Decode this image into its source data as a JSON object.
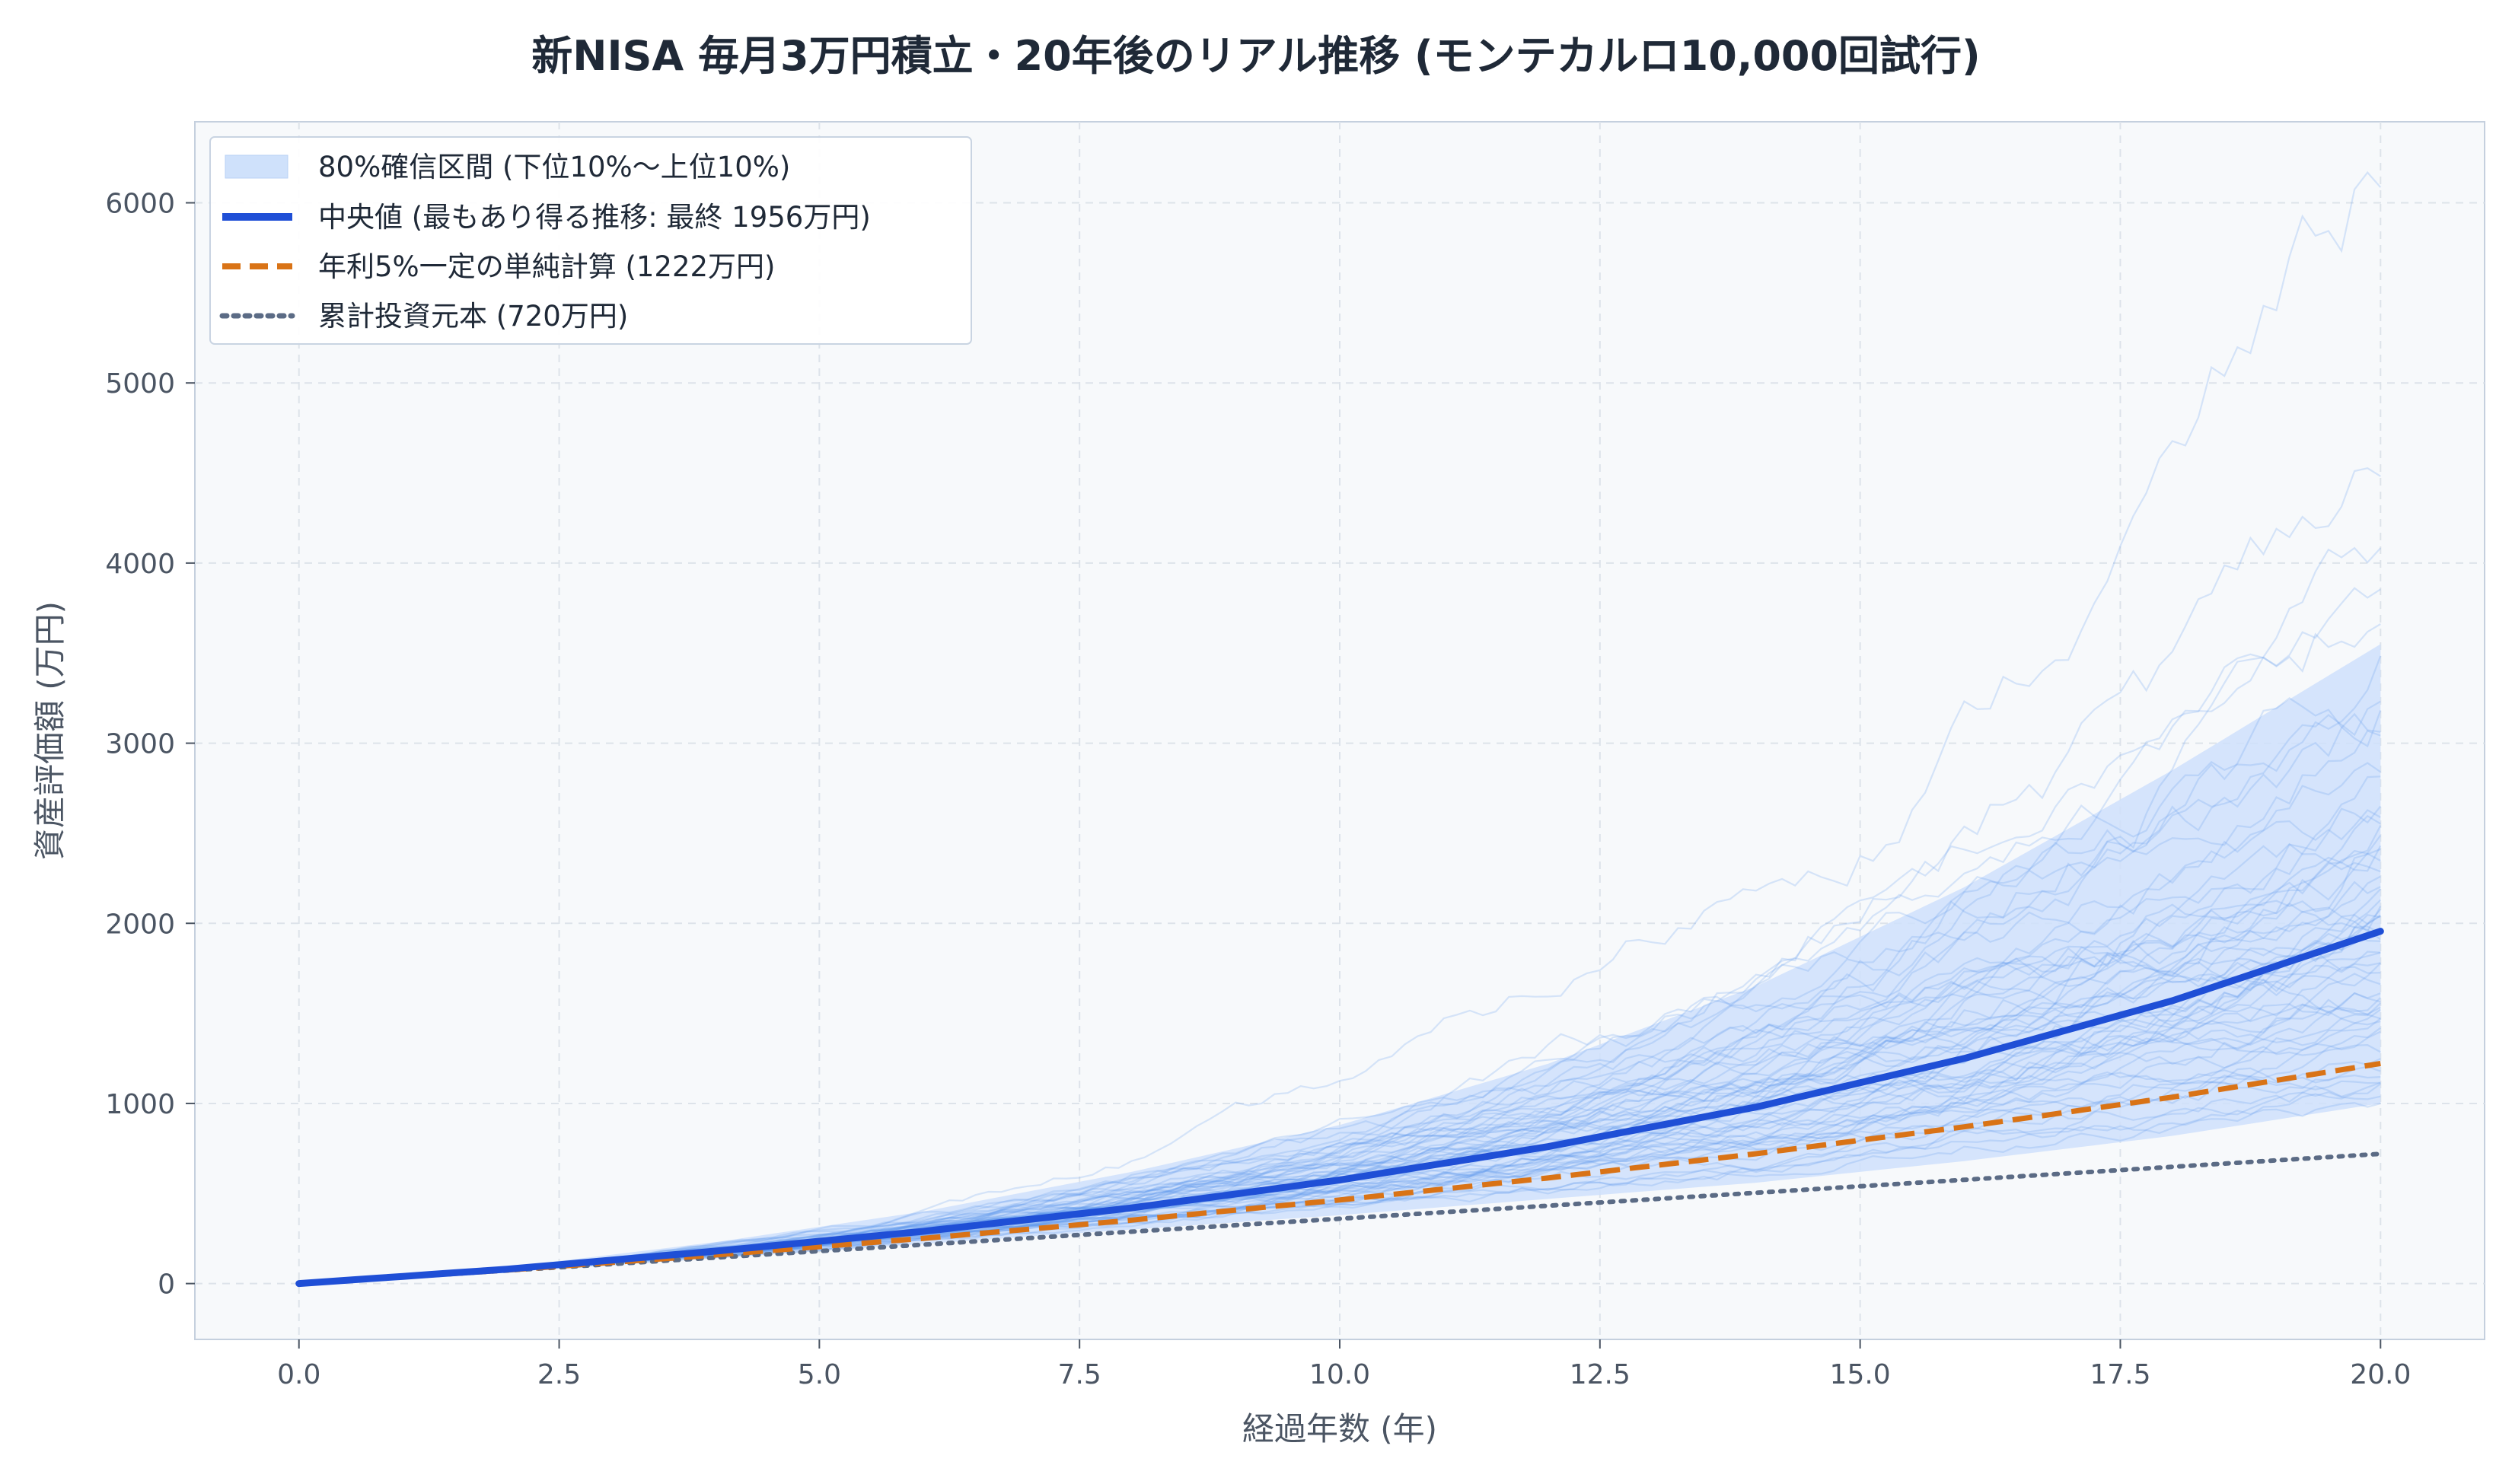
{
  "chart_data": {
    "type": "line",
    "title": "新NISA 毎月3万円積立・20年後のリアル推移 (モンテカルロ10,000回試行)",
    "xlabel": "経過年数 (年)",
    "ylabel": "資産評価額 (万円)",
    "xlim": [
      -1,
      21
    ],
    "ylim": [
      -310,
      6450
    ],
    "x_ticks": [
      0.0,
      2.5,
      5.0,
      7.5,
      10.0,
      12.5,
      15.0,
      17.5,
      20.0
    ],
    "x_tick_labels": [
      "0.0",
      "2.5",
      "5.0",
      "7.5",
      "10.0",
      "12.5",
      "15.0",
      "17.5",
      "20.0"
    ],
    "y_ticks": [
      0,
      1000,
      2000,
      3000,
      4000,
      5000,
      6000
    ],
    "y_tick_labels": [
      "0",
      "1000",
      "2000",
      "3000",
      "4000",
      "5000",
      "6000"
    ],
    "grid": true,
    "legend_position": "top-left",
    "legend": [
      {
        "key": "band",
        "label": "80%確信区間 (下位10%〜上位10%)"
      },
      {
        "key": "median",
        "label": "中央値 (最もあり得る推移: 最終 1956万円)"
      },
      {
        "key": "simple",
        "label": "年利5%一定の単純計算 (1222万円)"
      },
      {
        "key": "principal",
        "label": "累計投資元本 (720万円)"
      }
    ],
    "colors": {
      "band": "#cfe1fb",
      "paths": "#5b95ee",
      "median": "#1f4fd6",
      "simple": "#d97316",
      "principal": "#5b6b85",
      "plot_bg": "#f7f9fb",
      "grid": "#dde3ea",
      "frame": "#c5d0de"
    },
    "band_series": {
      "x": [
        0,
        2,
        4,
        6,
        8,
        10,
        12,
        14,
        16,
        18,
        20
      ],
      "p10": [
        0,
        70,
        140,
        220,
        300,
        380,
        470,
        560,
        680,
        820,
        1000
      ],
      "p90": [
        0,
        90,
        230,
        400,
        620,
        880,
        1220,
        1650,
        2200,
        2850,
        3550
      ]
    },
    "series": [
      {
        "name": "中央値 (最もあり得る推移: 最終 1956万円)",
        "style": "solid",
        "x": [
          0,
          2,
          4,
          6,
          8,
          10,
          12,
          14,
          16,
          18,
          20
        ],
        "values": [
          0,
          80,
          180,
          290,
          420,
          575,
          760,
          980,
          1250,
          1570,
          1956
        ]
      },
      {
        "name": "年利5%一定の単純計算 (1222万円)",
        "style": "dashed",
        "x": [
          0,
          2,
          4,
          6,
          8,
          10,
          12,
          14,
          16,
          18,
          20
        ],
        "values": [
          0,
          75,
          159,
          251,
          352,
          464,
          586,
          721,
          870,
          1035,
          1222
        ]
      },
      {
        "name": "累計投資元本 (720万円)",
        "style": "dotted",
        "x": [
          0,
          20
        ],
        "values": [
          0,
          720
        ]
      }
    ],
    "sample_paths": {
      "count": 60,
      "description_hidden": true,
      "final_values": [
        1000,
        1050,
        1100,
        1150,
        1200,
        1250,
        1300,
        1350,
        1400,
        1450,
        1500,
        1550,
        1600,
        1650,
        1700,
        1750,
        1800,
        1850,
        1900,
        1950,
        2000,
        2050,
        2100,
        2150,
        2200,
        2250,
        2300,
        2350,
        2400,
        2450,
        2500,
        2550,
        2600,
        2700,
        2800,
        2900,
        3000,
        3100,
        3200,
        3300,
        3400,
        3500,
        3600,
        3800,
        4000,
        4350,
        6150,
        1600,
        1400,
        1800,
        2000,
        2200,
        1500,
        1700,
        1900,
        2100,
        2300,
        2500,
        1300,
        1200
      ]
    }
  }
}
